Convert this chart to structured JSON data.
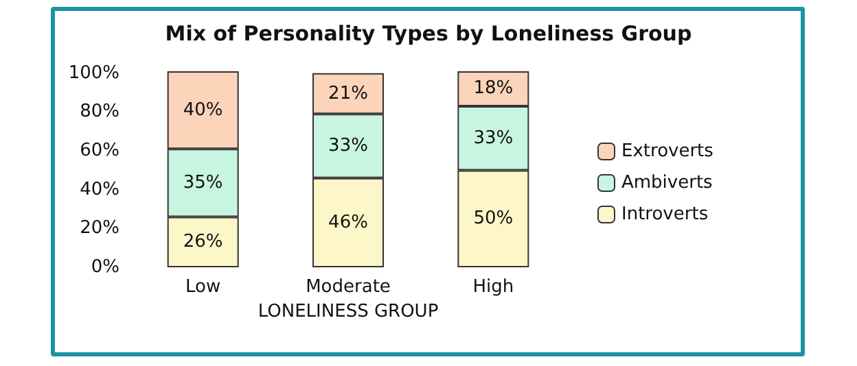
{
  "chart_data": {
    "type": "bar",
    "title": "Mix of Personality Types by Loneliness Group",
    "xlabel": "LONELINESS GROUP",
    "categories": [
      "Low",
      "Moderate",
      "High"
    ],
    "stacked": true,
    "series": [
      {
        "name": "Introverts",
        "color": "#fdf6c8",
        "values": [
          26,
          46,
          50
        ],
        "value_labels": [
          "26%",
          "46%",
          "50%"
        ]
      },
      {
        "name": "Ambiverts",
        "color": "#c8f5e2",
        "values": [
          35,
          33,
          33
        ],
        "value_labels": [
          "35%",
          "33%",
          "33%"
        ]
      },
      {
        "name": "Extroverts",
        "color": "#fbd4ba",
        "values": [
          40,
          21,
          18
        ],
        "value_labels": [
          "40%",
          "21%",
          "18%"
        ]
      }
    ],
    "ylim": [
      0,
      101
    ],
    "yticks": [
      {
        "value": 0,
        "label": "0%"
      },
      {
        "value": 20,
        "label": "20%"
      },
      {
        "value": 40,
        "label": "40%"
      },
      {
        "value": 60,
        "label": "60%"
      },
      {
        "value": 80,
        "label": "80%"
      },
      {
        "value": 100,
        "label": "100%"
      }
    ],
    "grid": false,
    "legend": "right"
  }
}
